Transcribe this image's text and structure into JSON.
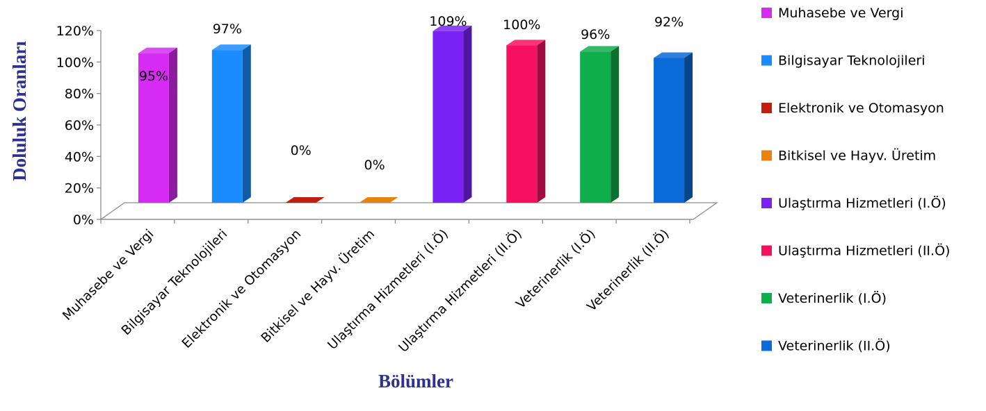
{
  "chart_data": {
    "type": "bar",
    "title": "",
    "xlabel": "Bölümler",
    "ylabel": "Doluluk Oranları",
    "ylim": [
      0,
      120
    ],
    "y_ticks": [
      "0%",
      "20%",
      "40%",
      "60%",
      "80%",
      "100%",
      "120%"
    ],
    "grid": false,
    "three_d": true,
    "legend_position": "right",
    "categories": [
      "Muhasebe ve Vergi",
      "Bilgisayar Teknolojileri",
      "Elektronik ve Otomasyon",
      "Bitkisel ve Hayv. Üretim",
      "Ulaştırma Hizmetleri (I.Ö)",
      "Ulaştırma Hizmetleri (II.Ö)",
      "Veterinerlik (I.Ö)",
      "Veterinerlik (II.Ö)"
    ],
    "values": [
      95,
      97,
      0,
      0,
      109,
      100,
      96,
      92
    ],
    "data_labels": [
      "95%",
      "97%",
      "0%",
      "0%",
      "109%",
      "100%",
      "96%",
      "92%"
    ],
    "colors": [
      "#d52bf2",
      "#1a8cff",
      "#c01e0e",
      "#e8820e",
      "#7a22f5",
      "#f5115f",
      "#0fae4c",
      "#0a6ad8"
    ]
  }
}
